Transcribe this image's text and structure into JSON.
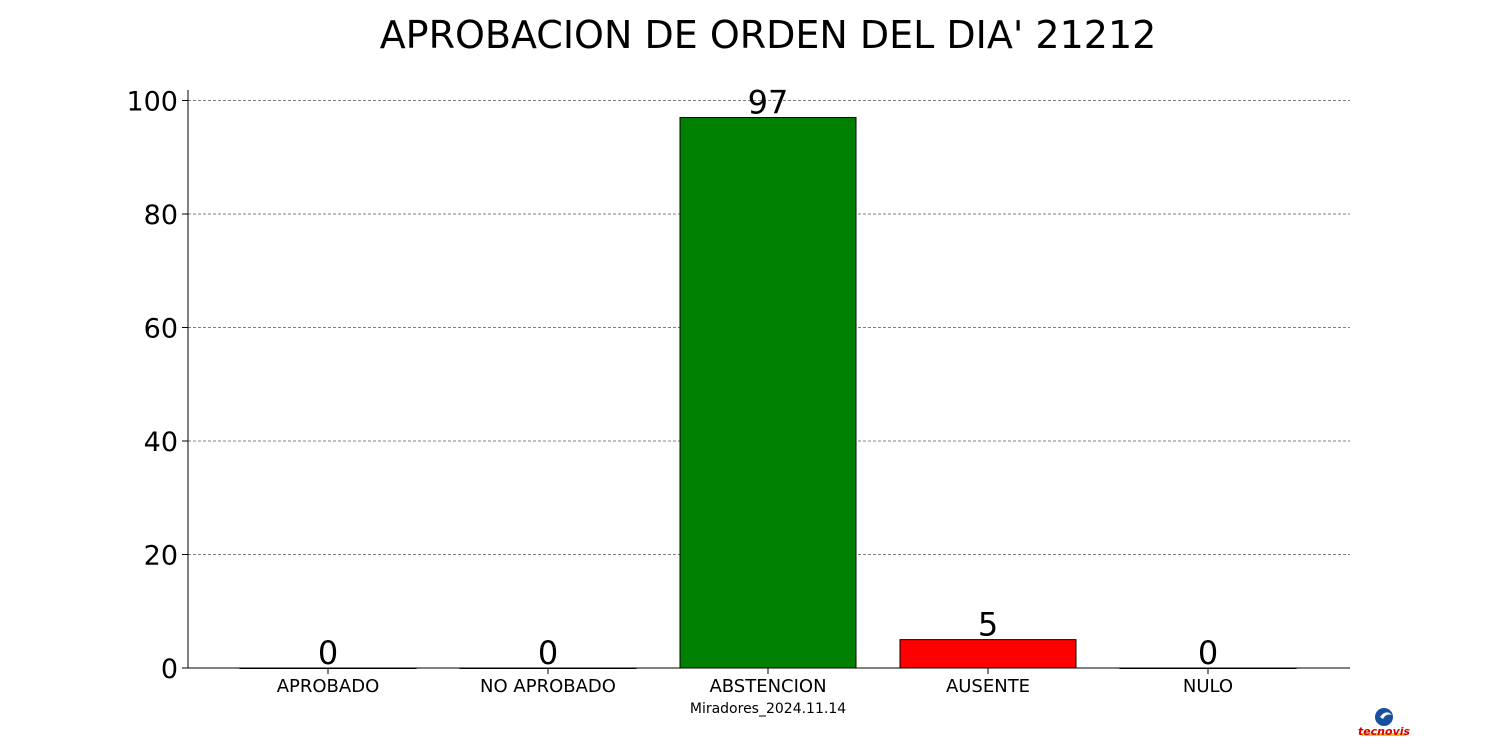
{
  "chart_data": {
    "type": "bar",
    "title": "APROBACION DE ORDEN DEL DIA' 21212",
    "xlabel": "Miradores_2024.11.14",
    "ylabel": "",
    "categories": [
      "APROBADO",
      "NO APROBADO",
      "ABSTENCION",
      "AUSENTE",
      "NULO"
    ],
    "values": [
      0,
      0,
      97,
      5,
      0
    ],
    "bar_colors": [
      "#008000",
      "#008000",
      "#008000",
      "#ff0000",
      "#008000"
    ],
    "edge_color": "#000000",
    "ylim": [
      0,
      102
    ],
    "yticks": [
      0,
      20,
      40,
      60,
      80,
      100
    ],
    "grid": "y-dashed",
    "legend": "none"
  },
  "logo": {
    "text": "tecnovis",
    "icon": "tecnovis-logo-icon",
    "colors": [
      "#1a4fa0",
      "#d40000",
      "#f2c400"
    ]
  }
}
